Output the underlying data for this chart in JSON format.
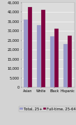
{
  "categories": [
    "Asian",
    "White",
    "Black",
    "Hispanic"
  ],
  "series": [
    {
      "label": "Total, 25+",
      "values": [
        36000,
        33000,
        27000,
        23000
      ],
      "color": "#9999cc"
    },
    {
      "label": "Full-time, 25-64",
      "values": [
        42500,
        41000,
        31000,
        27500
      ],
      "color": "#800040"
    }
  ],
  "ylim": [
    0,
    45000
  ],
  "yticks": [
    0,
    5000,
    10000,
    15000,
    20000,
    25000,
    30000,
    35000,
    40000,
    45000
  ],
  "ytick_labels": [
    "0",
    "5,000",
    "10,000",
    "15,000",
    "20,000",
    "25,000",
    "30,000",
    "35,000",
    "40,000",
    "45,000"
  ],
  "background_color": "#d3d3d3",
  "plot_background_color": "#dcdcdc",
  "bar_width": 0.32,
  "legend_fontsize": 3.8,
  "tick_fontsize": 3.5,
  "grid_color": "#ffffff",
  "figsize": [
    1.09,
    1.79
  ],
  "dpi": 100
}
